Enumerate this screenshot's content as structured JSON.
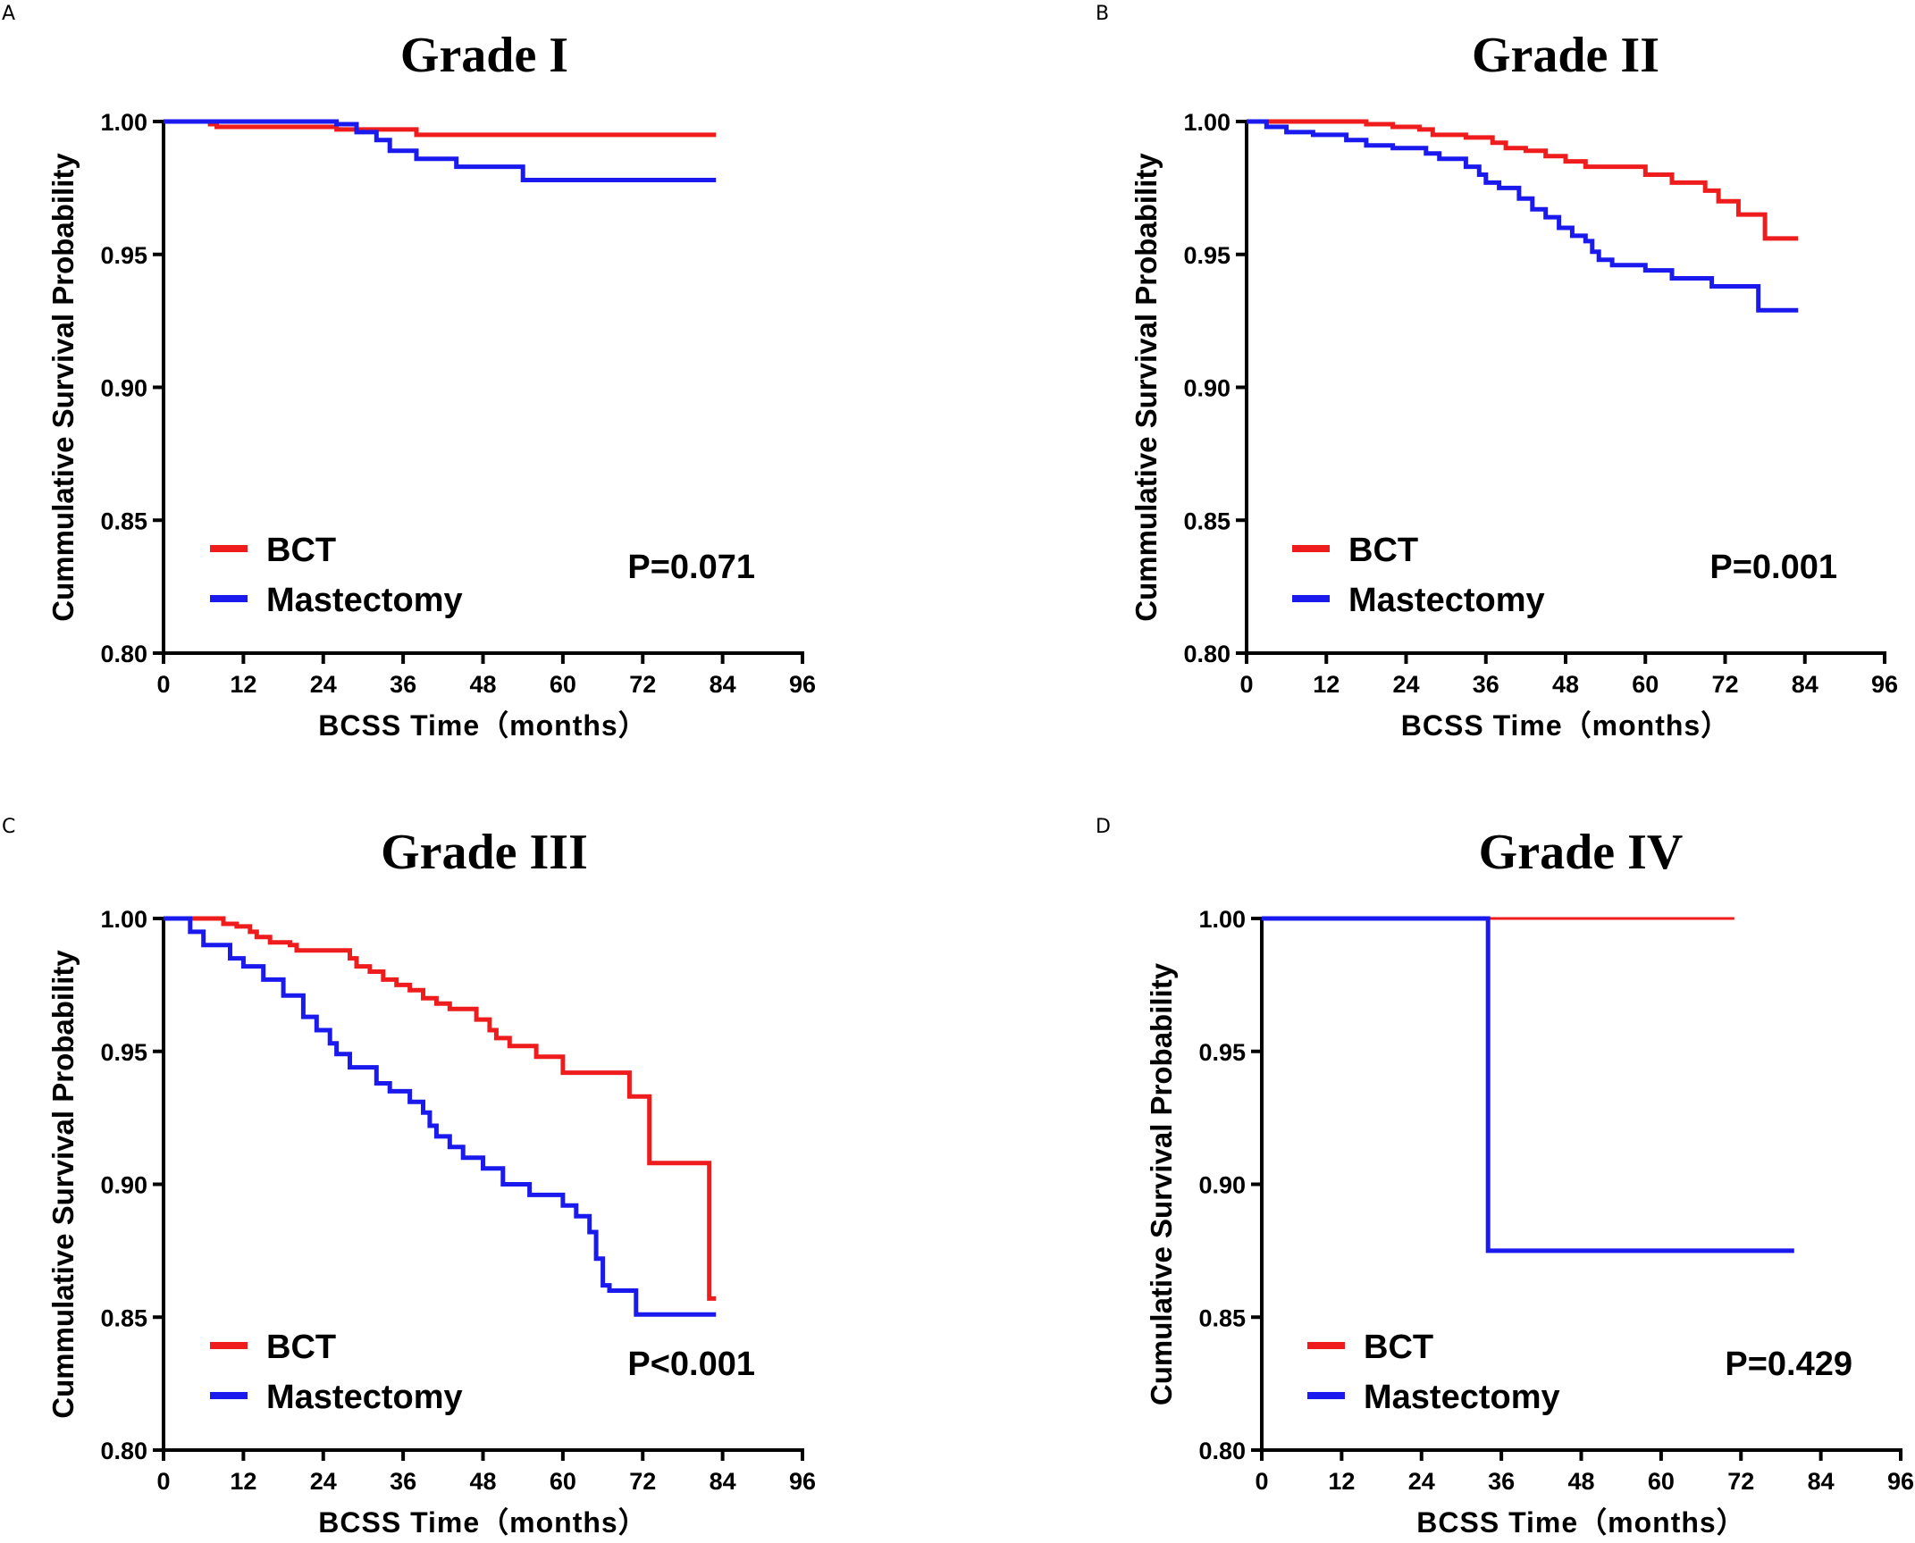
{
  "chart_data": [
    {
      "type": "line",
      "panel": "A",
      "title": "Grade I",
      "xlabel": "BCSS Time（months）",
      "ylabel": "Cummulative Survival Probability",
      "xlim": [
        0,
        96
      ],
      "ylim": [
        0.8,
        1.0
      ],
      "xticks": [
        "0",
        "12",
        "24",
        "36",
        "48",
        "60",
        "72",
        "84",
        "96"
      ],
      "yticks": [
        "0.80",
        "0.85",
        "0.90",
        "0.95",
        "1.00"
      ],
      "p_value": "P=0.071",
      "series": [
        {
          "name": "BCT",
          "color": "#ee1c1c",
          "points": [
            [
              0,
              1.0
            ],
            [
              7,
              1.0
            ],
            [
              7,
              0.999
            ],
            [
              8,
              0.999
            ],
            [
              8,
              0.998
            ],
            [
              26,
              0.998
            ],
            [
              26,
              0.997
            ],
            [
              38,
              0.997
            ],
            [
              38,
              0.995
            ],
            [
              83,
              0.995
            ]
          ]
        },
        {
          "name": "Mastectomy",
          "color": "#1a1aee",
          "points": [
            [
              0,
              1.0
            ],
            [
              26,
              1.0
            ],
            [
              26,
              0.999
            ],
            [
              29,
              0.999
            ],
            [
              29,
              0.996
            ],
            [
              32,
              0.996
            ],
            [
              32,
              0.993
            ],
            [
              34,
              0.993
            ],
            [
              34,
              0.989
            ],
            [
              38,
              0.989
            ],
            [
              38,
              0.986
            ],
            [
              44,
              0.986
            ],
            [
              44,
              0.983
            ],
            [
              54,
              0.983
            ],
            [
              54,
              0.978
            ],
            [
              83,
              0.978
            ]
          ]
        }
      ]
    },
    {
      "type": "line",
      "panel": "B",
      "title": "Grade II",
      "xlabel": "BCSS Time（months）",
      "ylabel": "Cummulative Survival Probability",
      "xlim": [
        0,
        96
      ],
      "ylim": [
        0.8,
        1.0
      ],
      "xticks": [
        "0",
        "12",
        "24",
        "36",
        "48",
        "60",
        "72",
        "84",
        "96"
      ],
      "yticks": [
        "0.80",
        "0.85",
        "0.90",
        "0.95",
        "1.00"
      ],
      "p_value": "P=0.001",
      "series": [
        {
          "name": "BCT",
          "color": "#ee1c1c",
          "points": [
            [
              0,
              1.0
            ],
            [
              18,
              1.0
            ],
            [
              18,
              0.999
            ],
            [
              22,
              0.999
            ],
            [
              22,
              0.998
            ],
            [
              26,
              0.998
            ],
            [
              26,
              0.997
            ],
            [
              28,
              0.997
            ],
            [
              28,
              0.995
            ],
            [
              33,
              0.995
            ],
            [
              33,
              0.994
            ],
            [
              37,
              0.994
            ],
            [
              37,
              0.992
            ],
            [
              39,
              0.992
            ],
            [
              39,
              0.99
            ],
            [
              42,
              0.99
            ],
            [
              42,
              0.989
            ],
            [
              45,
              0.989
            ],
            [
              45,
              0.987
            ],
            [
              48,
              0.987
            ],
            [
              48,
              0.985
            ],
            [
              51,
              0.985
            ],
            [
              51,
              0.983
            ],
            [
              60,
              0.983
            ],
            [
              60,
              0.98
            ],
            [
              64,
              0.98
            ],
            [
              64,
              0.977
            ],
            [
              69,
              0.977
            ],
            [
              69,
              0.974
            ],
            [
              71,
              0.974
            ],
            [
              71,
              0.97
            ],
            [
              74,
              0.97
            ],
            [
              74,
              0.965
            ],
            [
              78,
              0.965
            ],
            [
              78,
              0.956
            ],
            [
              83,
              0.956
            ]
          ]
        },
        {
          "name": "Mastectomy",
          "color": "#1a1aee",
          "points": [
            [
              0,
              1.0
            ],
            [
              3,
              1.0
            ],
            [
              3,
              0.998
            ],
            [
              6,
              0.998
            ],
            [
              6,
              0.996
            ],
            [
              10,
              0.996
            ],
            [
              10,
              0.995
            ],
            [
              15,
              0.995
            ],
            [
              15,
              0.993
            ],
            [
              18,
              0.993
            ],
            [
              18,
              0.991
            ],
            [
              22,
              0.991
            ],
            [
              22,
              0.99
            ],
            [
              27,
              0.99
            ],
            [
              27,
              0.988
            ],
            [
              29,
              0.988
            ],
            [
              29,
              0.986
            ],
            [
              33,
              0.986
            ],
            [
              33,
              0.983
            ],
            [
              35,
              0.983
            ],
            [
              35,
              0.98
            ],
            [
              36,
              0.98
            ],
            [
              36,
              0.977
            ],
            [
              38,
              0.977
            ],
            [
              38,
              0.975
            ],
            [
              41,
              0.975
            ],
            [
              41,
              0.971
            ],
            [
              43,
              0.971
            ],
            [
              43,
              0.967
            ],
            [
              45,
              0.967
            ],
            [
              45,
              0.964
            ],
            [
              47,
              0.964
            ],
            [
              47,
              0.96
            ],
            [
              49,
              0.96
            ],
            [
              49,
              0.957
            ],
            [
              51,
              0.957
            ],
            [
              51,
              0.955
            ],
            [
              52,
              0.955
            ],
            [
              52,
              0.951
            ],
            [
              53,
              0.951
            ],
            [
              53,
              0.948
            ],
            [
              55,
              0.948
            ],
            [
              55,
              0.946
            ],
            [
              60,
              0.946
            ],
            [
              60,
              0.944
            ],
            [
              64,
              0.944
            ],
            [
              64,
              0.941
            ],
            [
              70,
              0.941
            ],
            [
              70,
              0.938
            ],
            [
              77,
              0.938
            ],
            [
              77,
              0.929
            ],
            [
              83,
              0.929
            ]
          ]
        }
      ]
    },
    {
      "type": "line",
      "panel": "C",
      "title": "Grade III",
      "xlabel": "BCSS Time（months）",
      "ylabel": "Cummulative Survival Probability",
      "xlim": [
        0,
        96
      ],
      "ylim": [
        0.8,
        1.0
      ],
      "xticks": [
        "0",
        "12",
        "24",
        "36",
        "48",
        "60",
        "72",
        "84",
        "96"
      ],
      "yticks": [
        "0.80",
        "0.85",
        "0.90",
        "0.95",
        "1.00"
      ],
      "p_value": "P<0.001",
      "series": [
        {
          "name": "BCT",
          "color": "#ee1c1c",
          "points": [
            [
              0,
              1.0
            ],
            [
              9,
              1.0
            ],
            [
              9,
              0.998
            ],
            [
              11,
              0.998
            ],
            [
              11,
              0.997
            ],
            [
              13,
              0.997
            ],
            [
              13,
              0.995
            ],
            [
              14,
              0.995
            ],
            [
              14,
              0.993
            ],
            [
              16,
              0.993
            ],
            [
              16,
              0.991
            ],
            [
              19,
              0.991
            ],
            [
              19,
              0.99
            ],
            [
              20,
              0.99
            ],
            [
              20,
              0.988
            ],
            [
              28,
              0.988
            ],
            [
              28,
              0.985
            ],
            [
              29,
              0.985
            ],
            [
              29,
              0.982
            ],
            [
              31,
              0.982
            ],
            [
              31,
              0.98
            ],
            [
              33,
              0.98
            ],
            [
              33,
              0.977
            ],
            [
              35,
              0.977
            ],
            [
              35,
              0.975
            ],
            [
              37,
              0.975
            ],
            [
              37,
              0.973
            ],
            [
              39,
              0.973
            ],
            [
              39,
              0.97
            ],
            [
              41,
              0.97
            ],
            [
              41,
              0.968
            ],
            [
              43,
              0.968
            ],
            [
              43,
              0.966
            ],
            [
              47,
              0.966
            ],
            [
              47,
              0.962
            ],
            [
              49,
              0.962
            ],
            [
              49,
              0.958
            ],
            [
              50,
              0.958
            ],
            [
              50,
              0.955
            ],
            [
              52,
              0.955
            ],
            [
              52,
              0.952
            ],
            [
              56,
              0.952
            ],
            [
              56,
              0.948
            ],
            [
              60,
              0.948
            ],
            [
              60,
              0.942
            ],
            [
              70,
              0.942
            ],
            [
              70,
              0.933
            ],
            [
              73,
              0.933
            ],
            [
              73,
              0.908
            ],
            [
              82,
              0.908
            ],
            [
              82,
              0.857
            ],
            [
              83,
              0.857
            ]
          ]
        },
        {
          "name": "Mastectomy",
          "color": "#1a1aee",
          "points": [
            [
              0,
              1.0
            ],
            [
              4,
              1.0
            ],
            [
              4,
              0.995
            ],
            [
              6,
              0.995
            ],
            [
              6,
              0.99
            ],
            [
              10,
              0.99
            ],
            [
              10,
              0.985
            ],
            [
              12,
              0.985
            ],
            [
              12,
              0.982
            ],
            [
              15,
              0.982
            ],
            [
              15,
              0.977
            ],
            [
              18,
              0.977
            ],
            [
              18,
              0.971
            ],
            [
              21,
              0.971
            ],
            [
              21,
              0.963
            ],
            [
              23,
              0.963
            ],
            [
              23,
              0.958
            ],
            [
              25,
              0.958
            ],
            [
              25,
              0.953
            ],
            [
              26,
              0.953
            ],
            [
              26,
              0.949
            ],
            [
              28,
              0.949
            ],
            [
              28,
              0.944
            ],
            [
              32,
              0.944
            ],
            [
              32,
              0.938
            ],
            [
              34,
              0.938
            ],
            [
              34,
              0.935
            ],
            [
              37,
              0.935
            ],
            [
              37,
              0.931
            ],
            [
              39,
              0.931
            ],
            [
              39,
              0.927
            ],
            [
              40,
              0.927
            ],
            [
              40,
              0.922
            ],
            [
              41,
              0.922
            ],
            [
              41,
              0.918
            ],
            [
              43,
              0.918
            ],
            [
              43,
              0.914
            ],
            [
              45,
              0.914
            ],
            [
              45,
              0.91
            ],
            [
              48,
              0.91
            ],
            [
              48,
              0.906
            ],
            [
              51,
              0.906
            ],
            [
              51,
              0.9
            ],
            [
              55,
              0.9
            ],
            [
              55,
              0.896
            ],
            [
              60,
              0.896
            ],
            [
              60,
              0.892
            ],
            [
              62,
              0.892
            ],
            [
              62,
              0.888
            ],
            [
              64,
              0.888
            ],
            [
              64,
              0.882
            ],
            [
              65,
              0.882
            ],
            [
              65,
              0.872
            ],
            [
              66,
              0.872
            ],
            [
              66,
              0.862
            ],
            [
              67,
              0.862
            ],
            [
              67,
              0.86
            ],
            [
              71,
              0.86
            ],
            [
              71,
              0.851
            ],
            [
              83,
              0.851
            ]
          ]
        }
      ]
    },
    {
      "type": "line",
      "panel": "D",
      "title": "Grade IV",
      "xlabel": "BCSS Time（months）",
      "ylabel": "Cumulative Survival Probability",
      "xlim": [
        0,
        96
      ],
      "ylim": [
        0.8,
        1.0
      ],
      "xticks": [
        "0",
        "12",
        "24",
        "36",
        "48",
        "60",
        "72",
        "84",
        "96"
      ],
      "yticks": [
        "0.80",
        "0.85",
        "0.90",
        "0.95",
        "1.00"
      ],
      "p_value": "P=0.429",
      "series": [
        {
          "name": "BCT",
          "color": "#ee1c1c",
          "points": [
            [
              0,
              1.0
            ],
            [
              71,
              1.0
            ]
          ]
        },
        {
          "name": "Mastectomy",
          "color": "#1a1aee",
          "points": [
            [
              0,
              1.0
            ],
            [
              34,
              1.0
            ],
            [
              34,
              0.875
            ],
            [
              80,
              0.875
            ]
          ]
        }
      ]
    }
  ]
}
